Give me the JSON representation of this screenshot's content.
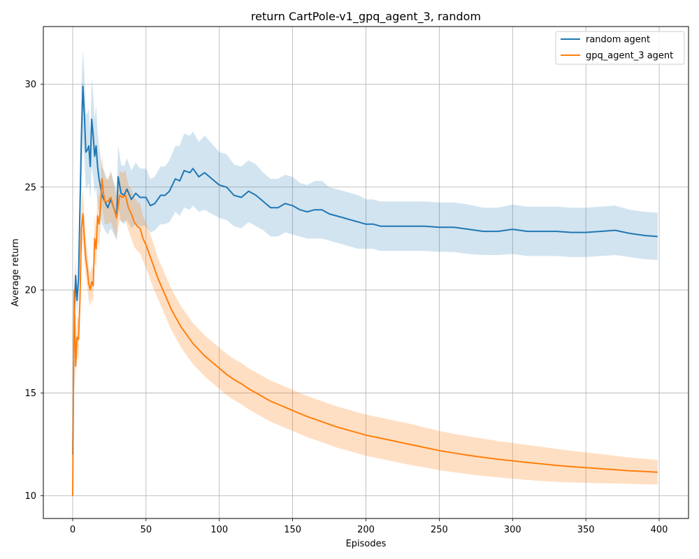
{
  "chart_data": {
    "type": "line",
    "title": "return CartPole-v1_gpq_agent_3, random",
    "xlabel": "Episodes",
    "ylabel": "Average return",
    "xlim": [
      -20,
      420
    ],
    "ylim": [
      8.9,
      32.8
    ],
    "xticks": [
      0,
      50,
      100,
      150,
      200,
      250,
      300,
      350,
      400
    ],
    "yticks": [
      10,
      15,
      20,
      25,
      30
    ],
    "grid": true,
    "legend_position": "top-right",
    "series": [
      {
        "name": "random agent",
        "color": "#1f77b4",
        "band_color": "#1f77b4",
        "x": [
          0,
          1,
          2,
          3,
          4,
          5,
          6,
          7,
          8,
          9,
          10,
          11,
          12,
          13,
          14,
          15,
          16,
          17,
          18,
          20,
          22,
          24,
          26,
          28,
          30,
          31,
          33,
          35,
          37,
          40,
          43,
          46,
          50,
          53,
          56,
          60,
          63,
          66,
          70,
          73,
          76,
          80,
          82,
          86,
          90,
          95,
          100,
          105,
          110,
          115,
          120,
          125,
          130,
          135,
          140,
          145,
          150,
          155,
          160,
          165,
          170,
          175,
          180,
          185,
          190,
          195,
          200,
          205,
          210,
          220,
          230,
          240,
          250,
          260,
          270,
          280,
          290,
          300,
          310,
          320,
          330,
          340,
          350,
          360,
          370,
          380,
          390,
          399
        ],
        "y": [
          12.0,
          18.5,
          20.7,
          19.5,
          20.5,
          24.0,
          27.5,
          29.9,
          28.5,
          26.7,
          26.8,
          27.0,
          26.0,
          28.3,
          27.5,
          26.5,
          27.0,
          26.0,
          25.4,
          24.6,
          24.3,
          24.0,
          24.4,
          24.0,
          23.6,
          25.5,
          24.7,
          24.6,
          24.9,
          24.4,
          24.7,
          24.5,
          24.5,
          24.1,
          24.2,
          24.6,
          24.6,
          24.8,
          25.4,
          25.3,
          25.8,
          25.7,
          25.9,
          25.5,
          25.7,
          25.4,
          25.1,
          25.0,
          24.6,
          24.5,
          24.8,
          24.6,
          24.3,
          24.0,
          24.0,
          24.2,
          24.1,
          23.9,
          23.8,
          23.9,
          23.9,
          23.7,
          23.6,
          23.5,
          23.4,
          23.3,
          23.2,
          23.2,
          23.1,
          23.1,
          23.1,
          23.1,
          23.05,
          23.05,
          22.95,
          22.85,
          22.85,
          22.95,
          22.85,
          22.85,
          22.85,
          22.8,
          22.8,
          22.85,
          22.9,
          22.75,
          22.65,
          22.6
        ],
        "lower": [
          12.0,
          17.5,
          19.8,
          18.8,
          19.6,
          22.5,
          25.0,
          27.3,
          26.3,
          24.9,
          25.0,
          25.2,
          24.4,
          26.0,
          25.5,
          24.7,
          25.0,
          24.3,
          23.8,
          23.2,
          22.9,
          22.7,
          23.0,
          22.7,
          22.4,
          24.0,
          23.3,
          23.2,
          23.4,
          23.0,
          23.2,
          23.1,
          23.1,
          22.8,
          22.9,
          23.2,
          23.2,
          23.3,
          23.8,
          23.6,
          24.0,
          23.9,
          24.1,
          23.8,
          23.9,
          23.7,
          23.5,
          23.4,
          23.1,
          23.0,
          23.3,
          23.1,
          22.9,
          22.6,
          22.6,
          22.8,
          22.7,
          22.6,
          22.5,
          22.5,
          22.5,
          22.4,
          22.3,
          22.2,
          22.1,
          22.0,
          22.0,
          22.0,
          21.9,
          21.9,
          21.9,
          21.9,
          21.85,
          21.85,
          21.75,
          21.7,
          21.7,
          21.75,
          21.65,
          21.65,
          21.65,
          21.6,
          21.6,
          21.65,
          21.7,
          21.6,
          21.5,
          21.45
        ],
        "upper": [
          12.0,
          19.5,
          21.6,
          20.2,
          21.4,
          25.6,
          30.0,
          31.7,
          30.5,
          28.5,
          28.6,
          28.8,
          27.6,
          30.3,
          29.5,
          28.3,
          29.0,
          27.7,
          27.0,
          26.0,
          25.7,
          25.3,
          25.8,
          25.3,
          24.8,
          27.0,
          26.1,
          26.0,
          26.4,
          25.8,
          26.2,
          25.9,
          25.9,
          25.4,
          25.5,
          26.0,
          26.0,
          26.3,
          27.0,
          27.0,
          27.6,
          27.5,
          27.7,
          27.2,
          27.5,
          27.1,
          26.7,
          26.6,
          26.1,
          26.0,
          26.3,
          26.1,
          25.7,
          25.4,
          25.4,
          25.6,
          25.5,
          25.2,
          25.1,
          25.3,
          25.3,
          25.0,
          24.9,
          24.8,
          24.7,
          24.6,
          24.4,
          24.4,
          24.3,
          24.3,
          24.3,
          24.3,
          24.25,
          24.25,
          24.15,
          24.0,
          24.0,
          24.15,
          24.05,
          24.05,
          24.05,
          24.0,
          24.0,
          24.05,
          24.1,
          23.9,
          23.8,
          23.75
        ]
      },
      {
        "name": "gpq_agent_3 agent",
        "color": "#ff7f0e",
        "band_color": "#ff7f0e",
        "x": [
          0,
          1,
          2,
          3,
          4,
          5,
          6,
          7,
          8,
          9,
          10,
          11,
          12,
          13,
          14,
          15,
          16,
          17,
          18,
          19,
          20,
          21,
          22,
          24,
          26,
          28,
          30,
          32,
          34,
          36,
          38,
          40,
          42,
          44,
          46,
          48,
          50,
          52,
          55,
          58,
          61,
          64,
          67,
          70,
          74,
          78,
          82,
          86,
          90,
          95,
          100,
          105,
          110,
          115,
          120,
          125,
          130,
          135,
          140,
          145,
          150,
          160,
          170,
          180,
          190,
          200,
          210,
          220,
          230,
          240,
          250,
          260,
          270,
          280,
          290,
          300,
          310,
          320,
          330,
          340,
          350,
          360,
          370,
          380,
          390,
          399
        ],
        "y": [
          10.0,
          20.0,
          16.3,
          17.7,
          17.6,
          19.5,
          23.0,
          23.7,
          22.5,
          21.5,
          21.0,
          20.3,
          20.0,
          20.4,
          20.2,
          22.5,
          22.0,
          23.6,
          23.2,
          24.0,
          25.4,
          24.7,
          24.3,
          24.3,
          24.5,
          24.0,
          23.5,
          24.6,
          24.5,
          24.6,
          24.0,
          23.7,
          23.3,
          23.1,
          23.0,
          22.5,
          22.2,
          21.8,
          21.2,
          20.6,
          20.1,
          19.6,
          19.1,
          18.7,
          18.2,
          17.8,
          17.4,
          17.1,
          16.8,
          16.5,
          16.2,
          15.9,
          15.65,
          15.45,
          15.2,
          15.0,
          14.8,
          14.6,
          14.45,
          14.3,
          14.15,
          13.85,
          13.6,
          13.35,
          13.15,
          12.95,
          12.8,
          12.65,
          12.5,
          12.35,
          12.2,
          12.08,
          11.97,
          11.87,
          11.78,
          11.7,
          11.62,
          11.55,
          11.48,
          11.42,
          11.37,
          11.32,
          11.27,
          11.22,
          11.18,
          11.15
        ],
        "lower": [
          10.0,
          18.8,
          15.5,
          16.7,
          16.6,
          18.6,
          21.8,
          22.5,
          21.4,
          20.6,
          20.1,
          19.5,
          19.2,
          19.6,
          19.4,
          21.4,
          21.0,
          22.4,
          22.1,
          22.9,
          24.2,
          23.6,
          23.2,
          23.2,
          23.3,
          22.9,
          22.5,
          23.4,
          23.3,
          23.4,
          22.9,
          22.5,
          22.1,
          21.9,
          21.8,
          21.4,
          21.1,
          20.7,
          20.1,
          19.6,
          19.1,
          18.6,
          18.1,
          17.7,
          17.2,
          16.8,
          16.4,
          16.1,
          15.8,
          15.5,
          15.2,
          14.9,
          14.65,
          14.45,
          14.2,
          14.0,
          13.8,
          13.6,
          13.45,
          13.3,
          13.15,
          12.85,
          12.6,
          12.35,
          12.15,
          11.95,
          11.8,
          11.65,
          11.5,
          11.38,
          11.25,
          11.15,
          11.05,
          10.96,
          10.9,
          10.83,
          10.77,
          10.72,
          10.68,
          10.65,
          10.63,
          10.61,
          10.6,
          10.58,
          10.56,
          10.55
        ],
        "upper": [
          10.0,
          21.2,
          17.1,
          18.7,
          18.6,
          20.4,
          24.2,
          24.9,
          23.6,
          22.4,
          21.9,
          21.1,
          20.8,
          21.2,
          21.0,
          23.6,
          23.0,
          24.8,
          24.3,
          25.1,
          26.6,
          25.8,
          25.4,
          25.4,
          25.7,
          25.1,
          24.5,
          25.8,
          25.7,
          25.8,
          25.1,
          24.9,
          24.5,
          24.3,
          24.2,
          23.6,
          23.3,
          22.9,
          22.3,
          21.6,
          21.1,
          20.6,
          20.1,
          19.7,
          19.2,
          18.8,
          18.4,
          18.1,
          17.8,
          17.5,
          17.2,
          16.9,
          16.65,
          16.45,
          16.2,
          16.0,
          15.8,
          15.6,
          15.45,
          15.3,
          15.15,
          14.85,
          14.6,
          14.35,
          14.15,
          13.95,
          13.8,
          13.65,
          13.5,
          13.32,
          13.15,
          13.01,
          12.89,
          12.78,
          12.66,
          12.57,
          12.47,
          12.38,
          12.28,
          12.19,
          12.11,
          12.03,
          11.94,
          11.86,
          11.8,
          11.75
        ]
      }
    ]
  }
}
